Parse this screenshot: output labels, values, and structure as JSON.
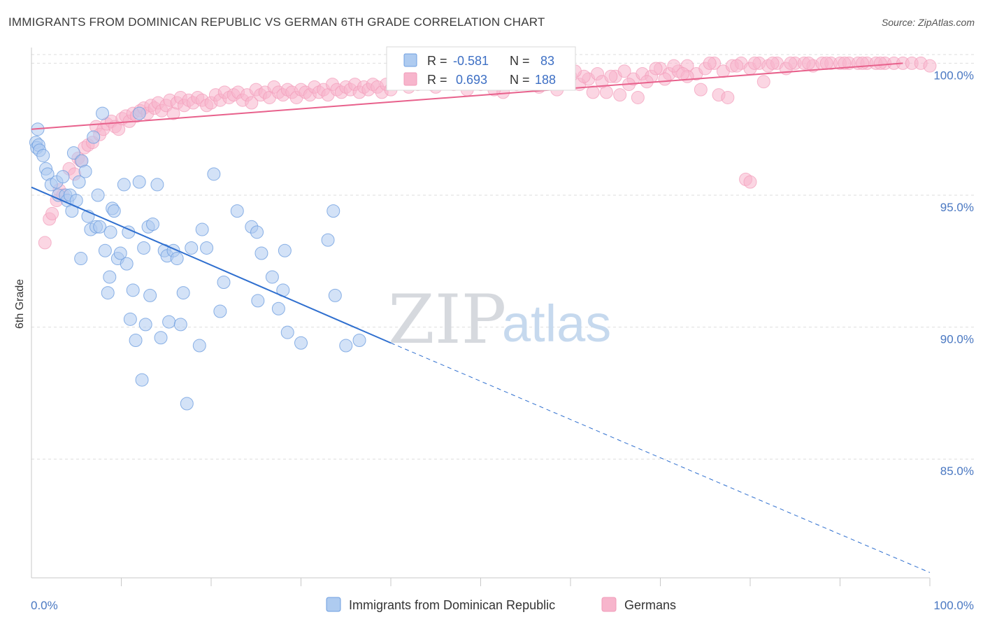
{
  "title": "IMMIGRANTS FROM DOMINICAN REPUBLIC VS GERMAN 6TH GRADE CORRELATION CHART",
  "source": "Source: ZipAtlas.com",
  "watermark": {
    "zip": "ZIP",
    "atlas": "atlas"
  },
  "legend_top": {
    "rows": [
      {
        "r_label": "R =",
        "r_value": "-0.581",
        "n_label": "N =",
        "n_value": "83",
        "color": "#aecbf0"
      },
      {
        "r_label": "R =",
        "r_value": "0.693",
        "n_label": "N =",
        "n_value": "188",
        "color": "#f7b5cc"
      }
    ]
  },
  "legend_bottom": {
    "items": [
      {
        "label": "Immigrants from Dominican Republic",
        "color": "#aecbf0"
      },
      {
        "label": "Germans",
        "color": "#f7b5cc"
      }
    ]
  },
  "chart_data": {
    "type": "scatter",
    "title": "IMMIGRANTS FROM DOMINICAN REPUBLIC VS GERMAN 6TH GRADE CORRELATION CHART",
    "xlabel": "",
    "ylabel": "6th Grade",
    "xlim": [
      0,
      100
    ],
    "ylim": [
      80.5,
      100.7
    ],
    "x_tick_labels": [
      "0.0%",
      "100.0%"
    ],
    "y_ticks": [
      85,
      90,
      95,
      100
    ],
    "y_tick_labels": [
      "85.0%",
      "90.0%",
      "95.0%",
      "100.0%"
    ],
    "grid": true,
    "colors": {
      "blue": "#aecbf0",
      "blue_line": "#2f6fcf",
      "pink": "#f7b5cc",
      "pink_line": "#e8618c"
    },
    "series": [
      {
        "name": "Immigrants from Dominican Republic",
        "color": "#aecbf0",
        "trend": {
          "x": [
            0,
            40
          ],
          "y": [
            95.3,
            89.4
          ],
          "dashed_to": [
            100,
            80.7
          ]
        },
        "points": [
          [
            0.5,
            97.0
          ],
          [
            0.6,
            96.8
          ],
          [
            0.7,
            97.5
          ],
          [
            0.8,
            96.9
          ],
          [
            0.9,
            96.7
          ],
          [
            1.3,
            96.5
          ],
          [
            1.6,
            96.0
          ],
          [
            1.8,
            95.8
          ],
          [
            2.2,
            95.4
          ],
          [
            2.8,
            95.5
          ],
          [
            3.0,
            95.0
          ],
          [
            3.5,
            95.7
          ],
          [
            3.8,
            95.0
          ],
          [
            4.0,
            94.8
          ],
          [
            4.3,
            95.0
          ],
          [
            4.5,
            94.4
          ],
          [
            4.7,
            96.6
          ],
          [
            5.0,
            94.8
          ],
          [
            5.3,
            95.5
          ],
          [
            5.6,
            96.3
          ],
          [
            6.0,
            95.9
          ],
          [
            6.3,
            94.2
          ],
          [
            6.6,
            93.7
          ],
          [
            6.9,
            97.2
          ],
          [
            7.2,
            93.8
          ],
          [
            7.6,
            93.8
          ],
          [
            7.4,
            95.0
          ],
          [
            7.9,
            98.1
          ],
          [
            5.5,
            92.6
          ],
          [
            8.2,
            92.9
          ],
          [
            8.5,
            91.3
          ],
          [
            8.7,
            91.9
          ],
          [
            8.8,
            93.6
          ],
          [
            9.0,
            94.5
          ],
          [
            9.2,
            94.4
          ],
          [
            9.6,
            92.6
          ],
          [
            9.9,
            92.8
          ],
          [
            10.3,
            95.4
          ],
          [
            10.6,
            92.4
          ],
          [
            10.8,
            93.6
          ],
          [
            11.0,
            90.3
          ],
          [
            11.3,
            91.4
          ],
          [
            11.6,
            89.5
          ],
          [
            12.0,
            95.5
          ],
          [
            12.0,
            98.1
          ],
          [
            12.3,
            88.0
          ],
          [
            12.5,
            93.0
          ],
          [
            12.7,
            90.1
          ],
          [
            13.0,
            93.8
          ],
          [
            13.2,
            91.2
          ],
          [
            13.5,
            93.9
          ],
          [
            14.0,
            95.4
          ],
          [
            14.4,
            89.6
          ],
          [
            14.8,
            92.9
          ],
          [
            15.1,
            92.7
          ],
          [
            15.3,
            90.2
          ],
          [
            15.8,
            92.9
          ],
          [
            16.2,
            92.6
          ],
          [
            16.6,
            90.1
          ],
          [
            16.9,
            91.3
          ],
          [
            17.3,
            87.1
          ],
          [
            17.8,
            93.0
          ],
          [
            18.7,
            89.3
          ],
          [
            19.0,
            93.7
          ],
          [
            19.5,
            93.0
          ],
          [
            20.3,
            95.8
          ],
          [
            21.0,
            90.6
          ],
          [
            21.4,
            91.7
          ],
          [
            22.9,
            94.4
          ],
          [
            24.5,
            93.8
          ],
          [
            25.1,
            93.6
          ],
          [
            25.2,
            91.0
          ],
          [
            25.6,
            92.8
          ],
          [
            26.8,
            91.9
          ],
          [
            27.5,
            90.7
          ],
          [
            28.0,
            91.4
          ],
          [
            28.2,
            92.9
          ],
          [
            28.5,
            89.8
          ],
          [
            30.0,
            89.4
          ],
          [
            33.0,
            93.3
          ],
          [
            33.6,
            94.4
          ],
          [
            33.8,
            91.2
          ],
          [
            35.0,
            89.3
          ],
          [
            36.5,
            89.5
          ]
        ]
      },
      {
        "name": "Germans",
        "color": "#f7b5cc",
        "trend": {
          "x": [
            0,
            97
          ],
          "y": [
            97.5,
            100.0
          ]
        },
        "points": [
          [
            1.5,
            93.2
          ],
          [
            2.0,
            94.1
          ],
          [
            2.3,
            94.3
          ],
          [
            2.8,
            94.8
          ],
          [
            3.1,
            95.2
          ],
          [
            3.5,
            95.0
          ],
          [
            4.2,
            96.0
          ],
          [
            4.8,
            95.8
          ],
          [
            5.2,
            96.4
          ],
          [
            5.5,
            96.3
          ],
          [
            5.9,
            96.8
          ],
          [
            6.3,
            96.9
          ],
          [
            6.8,
            97.0
          ],
          [
            7.2,
            97.6
          ],
          [
            7.6,
            97.3
          ],
          [
            8.0,
            97.5
          ],
          [
            8.4,
            97.7
          ],
          [
            8.9,
            97.8
          ],
          [
            9.3,
            97.6
          ],
          [
            9.7,
            97.5
          ],
          [
            10.1,
            97.9
          ],
          [
            10.5,
            98.0
          ],
          [
            10.9,
            97.8
          ],
          [
            11.3,
            98.1
          ],
          [
            11.7,
            98.0
          ],
          [
            12.1,
            98.2
          ],
          [
            12.5,
            98.3
          ],
          [
            12.9,
            98.1
          ],
          [
            13.3,
            98.4
          ],
          [
            13.7,
            98.3
          ],
          [
            14.1,
            98.5
          ],
          [
            14.5,
            98.2
          ],
          [
            15.0,
            98.4
          ],
          [
            15.4,
            98.6
          ],
          [
            15.8,
            98.1
          ],
          [
            16.2,
            98.5
          ],
          [
            16.6,
            98.7
          ],
          [
            17.0,
            98.4
          ],
          [
            17.5,
            98.6
          ],
          [
            18.0,
            98.5
          ],
          [
            18.5,
            98.7
          ],
          [
            19.0,
            98.6
          ],
          [
            19.5,
            98.4
          ],
          [
            20.0,
            98.5
          ],
          [
            20.5,
            98.8
          ],
          [
            21.0,
            98.6
          ],
          [
            21.5,
            98.9
          ],
          [
            22.0,
            98.7
          ],
          [
            22.5,
            98.8
          ],
          [
            23.0,
            98.9
          ],
          [
            23.5,
            98.6
          ],
          [
            24.0,
            98.8
          ],
          [
            24.5,
            98.5
          ],
          [
            25.0,
            99.0
          ],
          [
            25.5,
            98.8
          ],
          [
            26.0,
            98.9
          ],
          [
            26.5,
            98.7
          ],
          [
            27.0,
            99.1
          ],
          [
            27.5,
            98.9
          ],
          [
            28.0,
            98.8
          ],
          [
            28.5,
            99.0
          ],
          [
            29.0,
            98.9
          ],
          [
            29.5,
            98.7
          ],
          [
            30.0,
            99.0
          ],
          [
            30.5,
            98.9
          ],
          [
            31.0,
            98.8
          ],
          [
            31.5,
            99.1
          ],
          [
            32.0,
            98.9
          ],
          [
            32.5,
            99.0
          ],
          [
            33.0,
            98.8
          ],
          [
            33.5,
            99.2
          ],
          [
            34.0,
            99.0
          ],
          [
            34.5,
            98.9
          ],
          [
            35.0,
            99.1
          ],
          [
            35.5,
            99.0
          ],
          [
            36.0,
            99.2
          ],
          [
            36.5,
            98.9
          ],
          [
            37.0,
            99.1
          ],
          [
            37.5,
            99.0
          ],
          [
            38.0,
            99.2
          ],
          [
            38.5,
            99.1
          ],
          [
            39.0,
            98.9
          ],
          [
            39.5,
            99.2
          ],
          [
            40.0,
            99.0
          ],
          [
            41.0,
            99.3
          ],
          [
            42.0,
            99.1
          ],
          [
            43.0,
            99.2
          ],
          [
            44.0,
            99.4
          ],
          [
            45.0,
            99.1
          ],
          [
            46.0,
            99.3
          ],
          [
            47.0,
            99.2
          ],
          [
            48.0,
            99.4
          ],
          [
            49.0,
            99.3
          ],
          [
            50.0,
            99.2
          ],
          [
            51.0,
            99.5
          ],
          [
            52.0,
            99.3
          ],
          [
            53.0,
            99.4
          ],
          [
            54.0,
            99.2
          ],
          [
            55.0,
            99.5
          ],
          [
            56.0,
            99.3
          ],
          [
            57.0,
            99.6
          ],
          [
            58.0,
            99.4
          ],
          [
            59.0,
            99.3
          ],
          [
            60.0,
            99.5
          ],
          [
            61.0,
            99.2
          ],
          [
            62.0,
            99.4
          ],
          [
            63.0,
            99.6
          ],
          [
            64.0,
            98.9
          ],
          [
            65.0,
            99.5
          ],
          [
            66.0,
            99.7
          ],
          [
            67.0,
            99.4
          ],
          [
            68.0,
            99.6
          ],
          [
            69.0,
            99.5
          ],
          [
            70.0,
            99.8
          ],
          [
            71.0,
            99.6
          ],
          [
            72.0,
            99.7
          ],
          [
            73.0,
            99.9
          ],
          [
            74.0,
            99.6
          ],
          [
            75.0,
            99.8
          ],
          [
            76.0,
            100.0
          ],
          [
            77.0,
            99.7
          ],
          [
            78.0,
            99.9
          ],
          [
            79.0,
            100.0
          ],
          [
            80.0,
            99.8
          ],
          [
            81.0,
            100.0
          ],
          [
            82.0,
            99.9
          ],
          [
            83.0,
            100.0
          ],
          [
            84.0,
            99.8
          ],
          [
            85.0,
            100.0
          ],
          [
            86.0,
            100.0
          ],
          [
            87.0,
            99.9
          ],
          [
            88.0,
            100.0
          ],
          [
            89.0,
            100.0
          ],
          [
            90.0,
            100.0
          ],
          [
            91.0,
            100.0
          ],
          [
            92.0,
            100.0
          ],
          [
            93.0,
            100.0
          ],
          [
            94.0,
            100.0
          ],
          [
            95.0,
            100.0
          ],
          [
            96.0,
            100.0
          ],
          [
            97.0,
            100.0
          ],
          [
            98.0,
            100.0
          ],
          [
            99.0,
            100.0
          ],
          [
            100.0,
            99.9
          ],
          [
            62.5,
            98.9
          ],
          [
            65.5,
            98.8
          ],
          [
            67.5,
            98.7
          ],
          [
            74.5,
            99.0
          ],
          [
            76.5,
            98.8
          ],
          [
            77.5,
            98.7
          ],
          [
            81.5,
            99.3
          ],
          [
            79.5,
            95.6
          ],
          [
            80.0,
            95.5
          ],
          [
            73.0,
            99.5
          ],
          [
            70.5,
            99.4
          ],
          [
            68.5,
            99.3
          ],
          [
            61.5,
            99.5
          ],
          [
            59.5,
            99.6
          ],
          [
            58.5,
            99.0
          ],
          [
            56.5,
            99.1
          ],
          [
            54.5,
            99.6
          ],
          [
            52.5,
            98.9
          ],
          [
            50.5,
            99.6
          ],
          [
            48.5,
            99.0
          ],
          [
            46.5,
            99.6
          ],
          [
            44.5,
            99.2
          ],
          [
            42.5,
            99.7
          ],
          [
            45.5,
            99.5
          ],
          [
            47.5,
            99.5
          ],
          [
            49.5,
            99.6
          ],
          [
            51.5,
            99.0
          ],
          [
            53.5,
            99.6
          ],
          [
            55.5,
            99.7
          ],
          [
            57.5,
            99.5
          ],
          [
            60.5,
            99.7
          ],
          [
            63.5,
            99.3
          ],
          [
            64.5,
            99.5
          ],
          [
            66.5,
            99.2
          ],
          [
            69.5,
            99.8
          ],
          [
            71.5,
            99.9
          ],
          [
            72.5,
            99.6
          ],
          [
            75.5,
            100.0
          ],
          [
            78.5,
            99.9
          ],
          [
            80.5,
            100.0
          ],
          [
            82.5,
            100.0
          ],
          [
            84.5,
            100.0
          ],
          [
            86.5,
            100.0
          ],
          [
            88.5,
            100.0
          ],
          [
            90.5,
            100.0
          ],
          [
            92.5,
            100.0
          ],
          [
            94.5,
            100.0
          ]
        ]
      }
    ]
  }
}
